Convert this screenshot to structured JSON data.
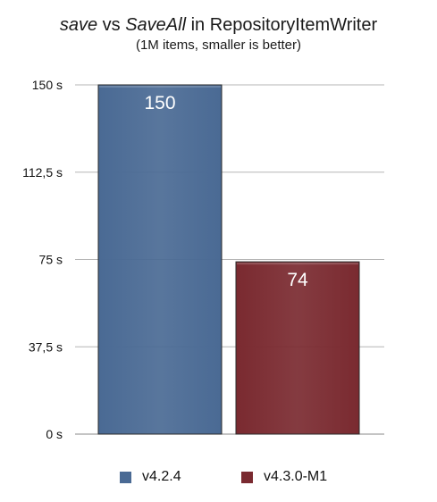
{
  "chart_data": {
    "type": "bar",
    "title_parts": [
      {
        "text": "save",
        "italic": true
      },
      {
        "text": " vs ",
        "italic": false
      },
      {
        "text": "SaveAll",
        "italic": true
      },
      {
        "text": " in RepositoryItemWriter",
        "italic": false
      }
    ],
    "subtitle": "(1M items, smaller is better)",
    "ylim": [
      0,
      150
    ],
    "yticks": [
      {
        "value": 0,
        "label": "0 s"
      },
      {
        "value": 37.5,
        "label": "37,5 s"
      },
      {
        "value": 75,
        "label": "75 s"
      },
      {
        "value": 112.5,
        "label": "112,5 s"
      },
      {
        "value": 150,
        "label": "150 s"
      }
    ],
    "grid": true,
    "legend_position": "bottom",
    "series": [
      {
        "name": "v4.2.4",
        "value": 150,
        "label": "150",
        "color": "#4a6a94"
      },
      {
        "name": "v4.3.0-M1",
        "value": 74,
        "label": "74",
        "color": "#7a2a30"
      }
    ]
  }
}
